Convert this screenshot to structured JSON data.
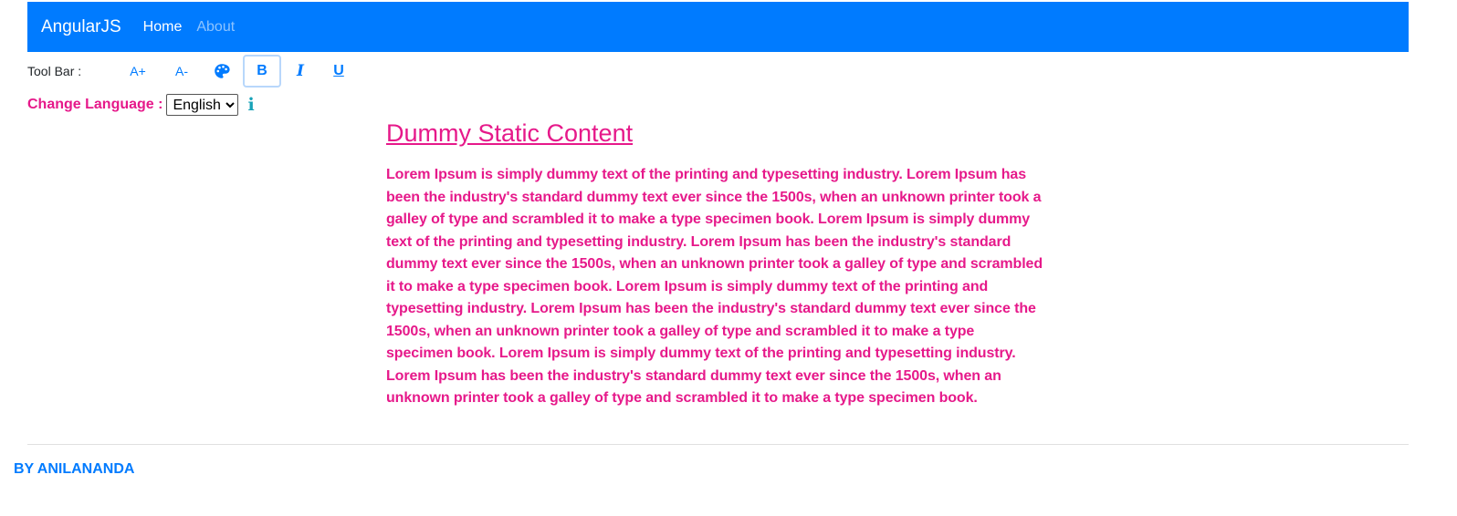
{
  "navbar": {
    "brand": "AngularJS",
    "links": [
      {
        "label": "Home"
      },
      {
        "label": "About"
      }
    ]
  },
  "toolbar": {
    "label": "Tool Bar :",
    "increase_font": "A+",
    "decrease_font": "A-",
    "palette_icon": "palette-icon",
    "bold": "B",
    "italic": "I",
    "underline": "U"
  },
  "language": {
    "label": "Change Language :",
    "selected": "English",
    "info_icon": "i"
  },
  "content": {
    "title": "Dummy Static Content",
    "body": "Lorem Ipsum is simply dummy text of the printing and typesetting industry. Lorem Ipsum has been the industry's standard dummy text ever since the 1500s, when an unknown printer took a galley of type and scrambled it to make a type specimen book. Lorem Ipsum is simply dummy text of the printing and typesetting industry. Lorem Ipsum has been the industry's standard dummy text ever since the 1500s, when an unknown printer took a galley of type and scrambled it to make a type specimen book. Lorem Ipsum is simply dummy text of the printing and typesetting industry. Lorem Ipsum has been the industry's standard dummy text ever since the 1500s, when an unknown printer took a galley of type and scrambled it to make a type specimen book. Lorem Ipsum is simply dummy text of the printing and typesetting industry. Lorem Ipsum has been the industry's standard dummy text ever since the 1500s, when an unknown printer took a galley of type and scrambled it to make a type specimen book."
  },
  "footer": {
    "text": "BY ANILANANDA"
  },
  "colors": {
    "navbar": "#007bff",
    "accent_pink": "#e6198a",
    "info": "#17a2b8"
  }
}
